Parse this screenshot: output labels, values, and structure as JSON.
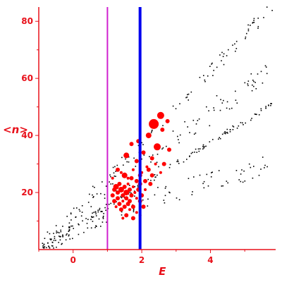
{
  "chart_data": {
    "type": "scatter",
    "title": "",
    "xlabel": "E",
    "ylabel": "<n>",
    "xlim": [
      -1,
      5.9
    ],
    "ylim": [
      0,
      85
    ],
    "x_ticks": [
      0,
      2,
      4
    ],
    "y_ticks": [
      20,
      40,
      60,
      80
    ],
    "x_tick_labels": [
      "0",
      "2",
      "4"
    ],
    "y_tick_labels": [
      "20",
      "40",
      "60",
      "80"
    ],
    "grid": false,
    "legend": "none",
    "colors": {
      "axis": "#e8101a",
      "black_points": "#000000",
      "red_points": "#ff0000",
      "line_magenta": "#d020d0",
      "line_blue": "#0000ee"
    },
    "vertical_lines": [
      {
        "x": 1.0,
        "color": "#d020d0"
      },
      {
        "x": 1.95,
        "color": "#0000ee"
      }
    ],
    "series": [
      {
        "color": "#000000",
        "marker": "dot",
        "bands": [
          {
            "x0": -0.9,
            "x1": 5.8,
            "y0": 1,
            "y1": 51,
            "n": 130,
            "jitter": 1.0
          },
          {
            "x0": -0.9,
            "x1": 5.8,
            "y0": 1,
            "y1": 85,
            "n": 110,
            "jitter": 2.5
          },
          {
            "x0": -0.9,
            "x1": 5.8,
            "y0": 1,
            "y1": 65,
            "n": 100,
            "jitter": 4.5
          },
          {
            "x0": 1.4,
            "x1": 5.8,
            "y0": 15,
            "y1": 30,
            "n": 60,
            "jitter": 3.5
          },
          {
            "x0": -0.9,
            "x1": 1.0,
            "y0": 1,
            "y1": 12,
            "n": 50,
            "jitter": 3.0
          }
        ]
      },
      {
        "color": "#ff0000",
        "marker": "circle",
        "points": [
          [
            2.55,
            47,
            5
          ],
          [
            2.75,
            45,
            3
          ],
          [
            2.35,
            44,
            7
          ],
          [
            2.6,
            42,
            3
          ],
          [
            2.2,
            40,
            4
          ],
          [
            1.9,
            38,
            3
          ],
          [
            1.7,
            37,
            3
          ],
          [
            2.45,
            36,
            5
          ],
          [
            2.8,
            35,
            3
          ],
          [
            2.05,
            34,
            3
          ],
          [
            1.55,
            33,
            4
          ],
          [
            2.3,
            32,
            3
          ],
          [
            1.85,
            31,
            3
          ],
          [
            2.65,
            30,
            3
          ],
          [
            2.4,
            30,
            2
          ],
          [
            1.3,
            28,
            3
          ],
          [
            1.75,
            28,
            2
          ],
          [
            2.2,
            28,
            3
          ],
          [
            1.4,
            27,
            2
          ],
          [
            2.55,
            27,
            2
          ],
          [
            1.5,
            26,
            4
          ],
          [
            1.95,
            26,
            3
          ],
          [
            2.3,
            26,
            3
          ],
          [
            1.15,
            25,
            2
          ],
          [
            1.7,
            25,
            3
          ],
          [
            1.85,
            24,
            3
          ],
          [
            2.1,
            24,
            3
          ],
          [
            1.35,
            23,
            3
          ],
          [
            1.6,
            23,
            2
          ],
          [
            1.95,
            23,
            3
          ],
          [
            2.25,
            23,
            3
          ],
          [
            1.25,
            22,
            4
          ],
          [
            1.5,
            22,
            3
          ],
          [
            1.75,
            22,
            2
          ],
          [
            1.2,
            21,
            3
          ],
          [
            1.4,
            21,
            4
          ],
          [
            1.65,
            21,
            3
          ],
          [
            1.9,
            21,
            3
          ],
          [
            2.1,
            21,
            2
          ],
          [
            1.3,
            20,
            3
          ],
          [
            1.55,
            20,
            4
          ],
          [
            1.8,
            20,
            2
          ],
          [
            1.15,
            19,
            3
          ],
          [
            1.45,
            19,
            3
          ],
          [
            1.7,
            19,
            3
          ],
          [
            2.0,
            19,
            3
          ],
          [
            1.3,
            18,
            3
          ],
          [
            1.55,
            18,
            3
          ],
          [
            1.85,
            18,
            2
          ],
          [
            1.2,
            17,
            3
          ],
          [
            1.45,
            17,
            2
          ],
          [
            1.65,
            17,
            3
          ],
          [
            1.95,
            17,
            3
          ],
          [
            1.35,
            16,
            3
          ],
          [
            1.6,
            16,
            3
          ],
          [
            1.25,
            15,
            2
          ],
          [
            1.5,
            15,
            3
          ],
          [
            1.75,
            15,
            3
          ],
          [
            2.05,
            15,
            3
          ],
          [
            1.4,
            14,
            3
          ],
          [
            1.65,
            14,
            2
          ],
          [
            1.85,
            13,
            2
          ],
          [
            1.55,
            12,
            3
          ],
          [
            1.75,
            11,
            3
          ],
          [
            1.45,
            11,
            2
          ],
          [
            1.95,
            12,
            2
          ],
          [
            1.6,
            25,
            2
          ],
          [
            2.0,
            27,
            2
          ],
          [
            2.15,
            29,
            2
          ]
        ]
      }
    ]
  }
}
